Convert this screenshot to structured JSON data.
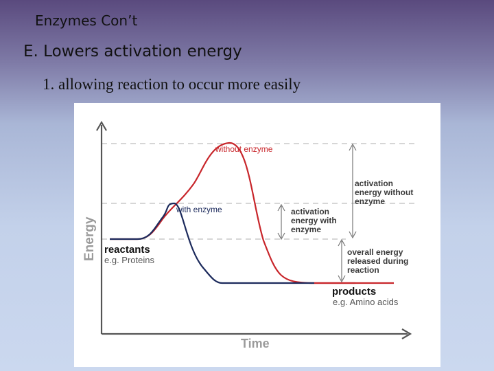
{
  "slide": {
    "title": "Enzymes Con’t",
    "point": "E. Lowers activation energy",
    "subpoint": "1. allowing reaction to occur more easily"
  },
  "diagram": {
    "y_axis_label": "Energy",
    "x_axis_label": "Time",
    "curve_without": "without enzyme",
    "curve_with": "with enzyme",
    "reactants": "reactants",
    "reactants_example": "e.g. Proteins",
    "products": "products",
    "products_example": "e.g. Amino acids",
    "activation_without": [
      "activation",
      "energy without",
      "enzyme"
    ],
    "activation_with": [
      "activation",
      "energy with",
      "enzyme"
    ],
    "energy_released": [
      "overall energy",
      "released during",
      "reaction"
    ],
    "colors": {
      "without_enzyme": "#c8262b",
      "with_enzyme": "#1c2a5c",
      "axis": "#555555",
      "guide": "#bdbdbd"
    }
  }
}
